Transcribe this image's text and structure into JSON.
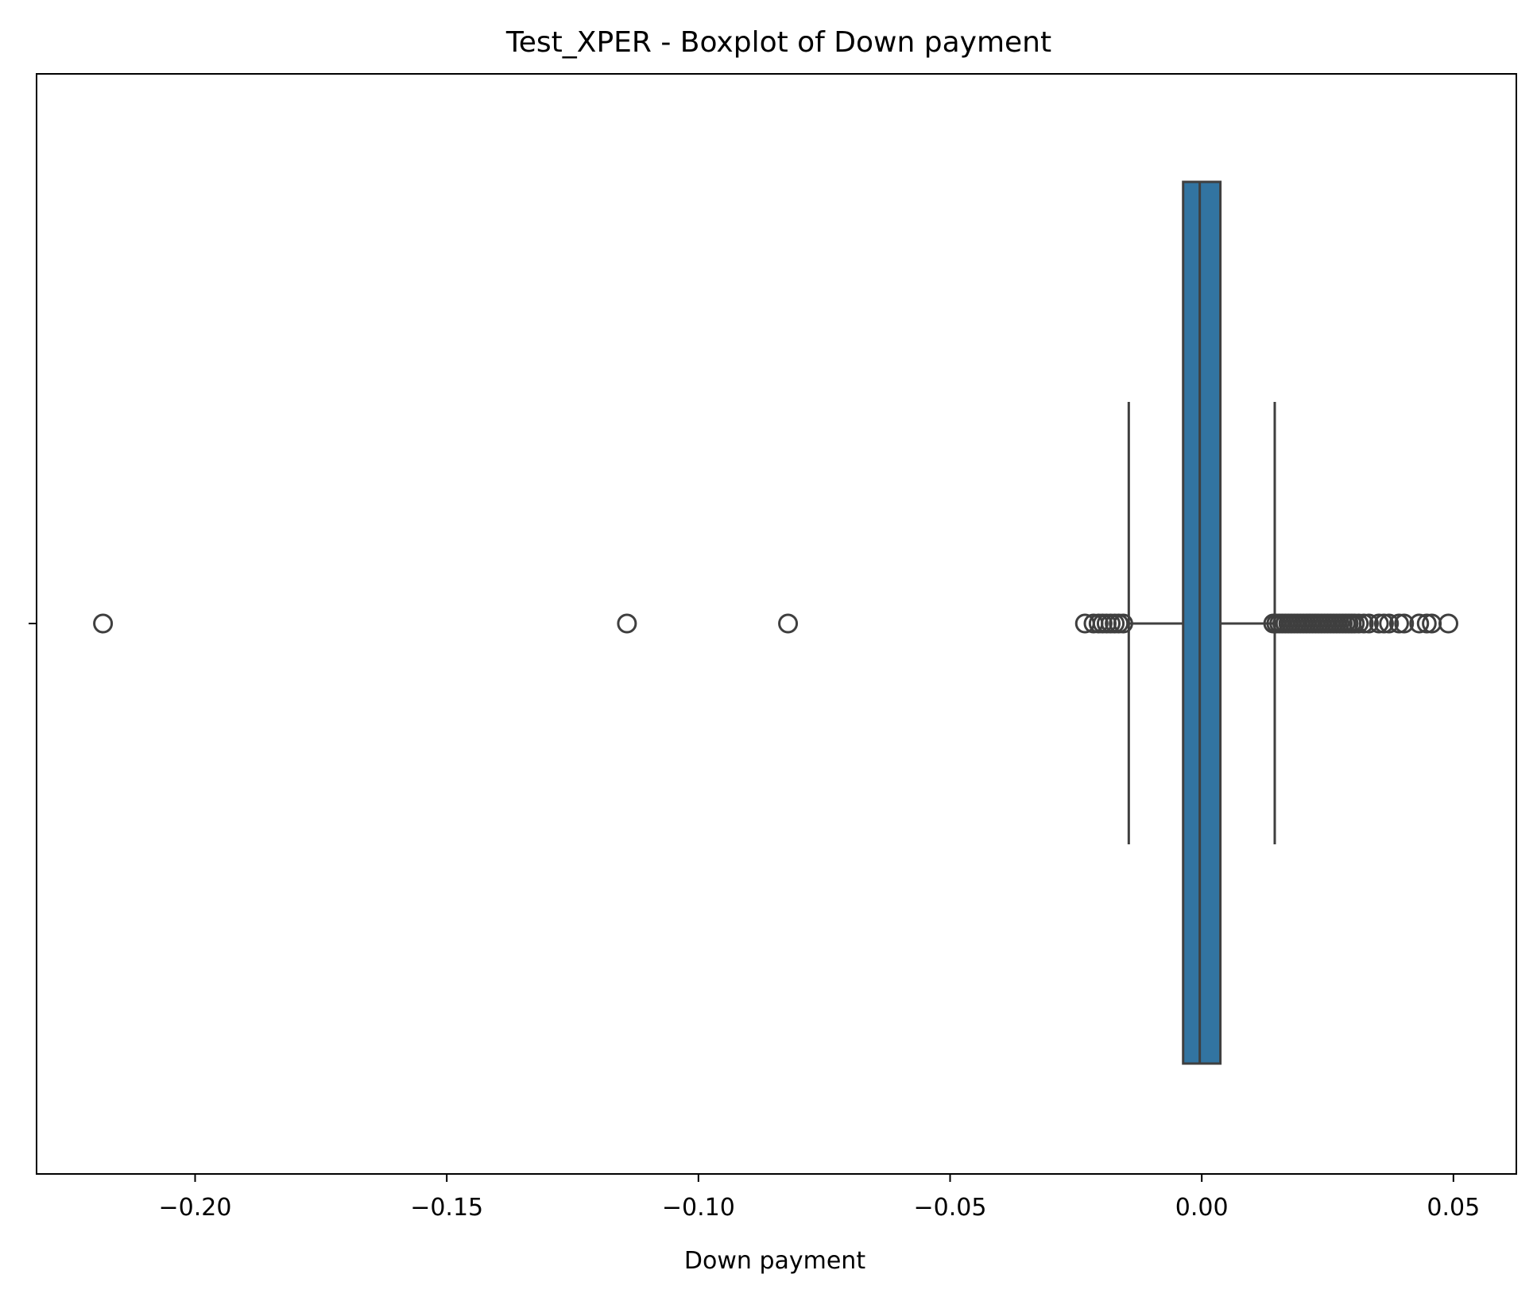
{
  "chart_data": {
    "type": "boxplot",
    "title": "Test_XPER - Boxplot of Down payment",
    "xlabel": "Down payment",
    "ylabel": "",
    "xlim": [
      -0.2315,
      0.0625
    ],
    "xticks": [
      -0.2,
      -0.15,
      -0.1,
      -0.05,
      0.0,
      0.05
    ],
    "xtick_labels": [
      "−0.20",
      "−0.15",
      "−0.10",
      "−0.05",
      "0.00",
      "0.05"
    ],
    "orientation": "horizontal",
    "grid": false,
    "colors": {
      "box_fill": "#3274a1",
      "line": "#3f3f3f"
    },
    "box": {
      "whisker_low": -0.0145,
      "q1": -0.0037,
      "median": -0.0004,
      "q3": 0.0037,
      "whisker_high": 0.0145
    },
    "outliers": [
      -0.2183,
      -0.1142,
      -0.0822,
      -0.0232,
      -0.0215,
      -0.0205,
      -0.0197,
      -0.0189,
      -0.0181,
      -0.0173,
      -0.0165,
      -0.0156,
      0.0142,
      0.0148,
      0.0154,
      0.016,
      0.0166,
      0.0172,
      0.0178,
      0.0184,
      0.019,
      0.0196,
      0.0202,
      0.0208,
      0.0214,
      0.022,
      0.0226,
      0.0232,
      0.0238,
      0.0244,
      0.025,
      0.0256,
      0.0262,
      0.0268,
      0.0274,
      0.028,
      0.0286,
      0.0292,
      0.0298,
      0.0304,
      0.0312,
      0.0322,
      0.0332,
      0.0352,
      0.0362,
      0.0372,
      0.0392,
      0.0402,
      0.0432,
      0.0447,
      0.0457,
      0.049
    ]
  }
}
